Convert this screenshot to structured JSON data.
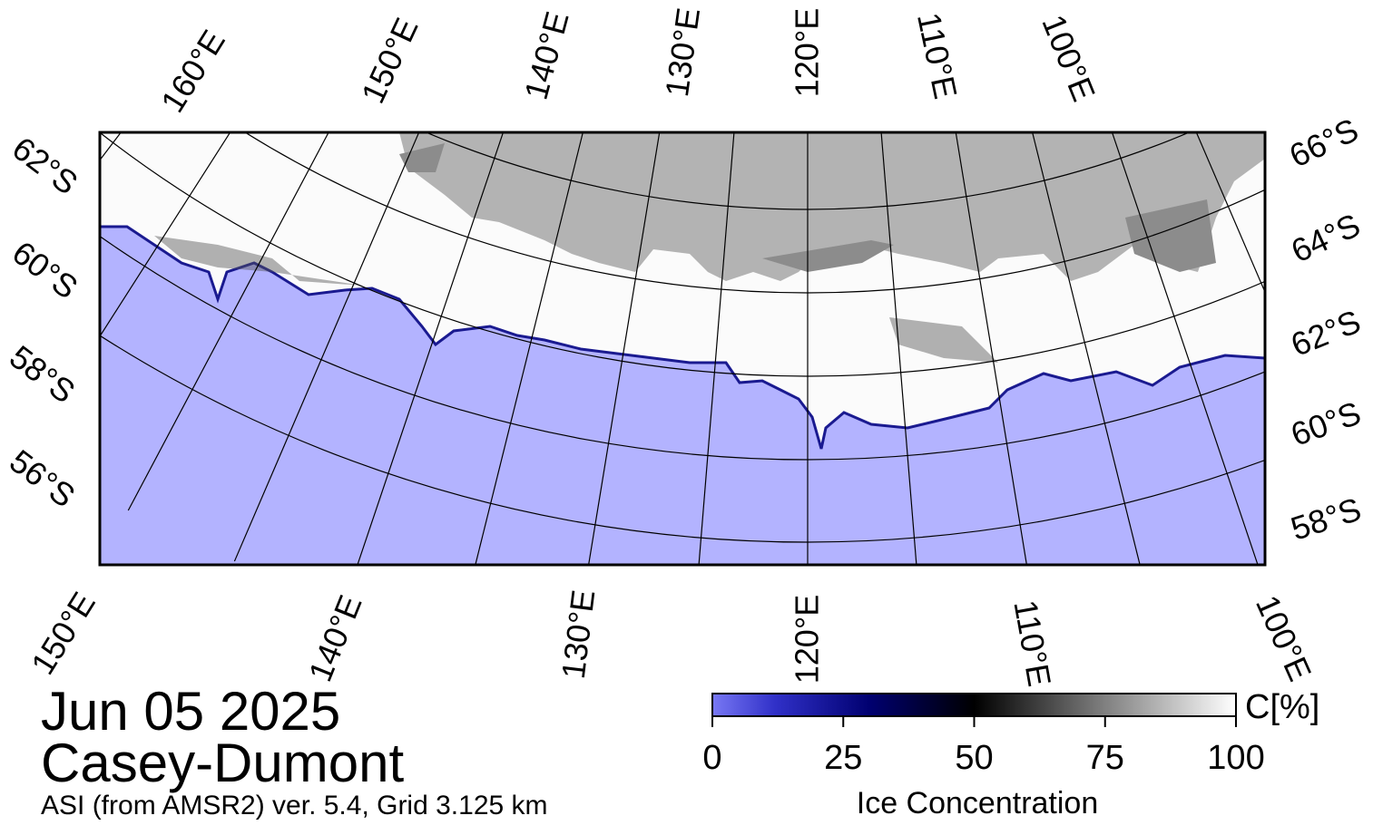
{
  "map": {
    "top_longitude_labels": [
      "160°E",
      "150°E",
      "140°E",
      "130°E",
      "120°E",
      "110°E",
      "100°E"
    ],
    "bottom_longitude_labels": [
      "150°E",
      "140°E",
      "130°E",
      "120°E",
      "110°E",
      "100°E"
    ],
    "left_latitude_labels": [
      "62°S",
      "60°S",
      "58°S",
      "56°S"
    ],
    "right_latitude_labels": [
      "66°S",
      "64°S",
      "62°S",
      "60°S",
      "58°S"
    ]
  },
  "date": "Jun 05 2025",
  "region": "Casey-Dumont",
  "source": "ASI (from AMSR2) ver. 5.4,  Grid 3.125 km",
  "colorbar": {
    "lim": [
      0,
      100
    ],
    "ticks": [
      0,
      25,
      50,
      75,
      100
    ],
    "unit": "C[%]",
    "label": "Ice Concentration"
  }
}
